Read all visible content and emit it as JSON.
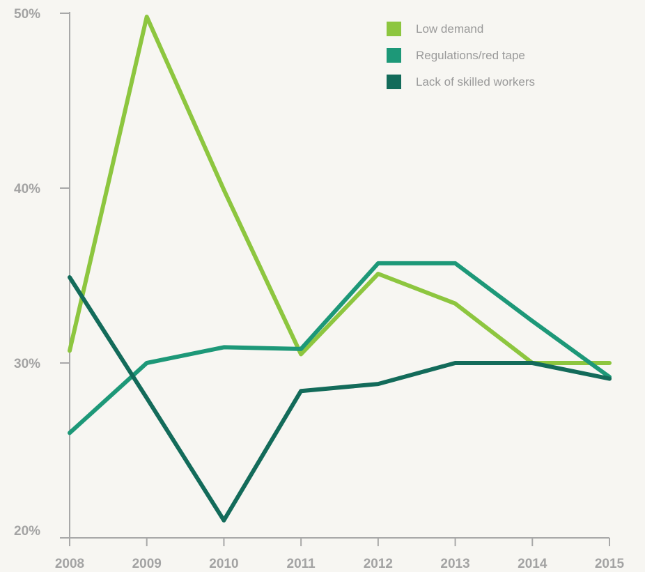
{
  "chart_data": {
    "type": "line",
    "x": [
      "2008",
      "2009",
      "2010",
      "2011",
      "2012",
      "2013",
      "2014",
      "2015"
    ],
    "ylim": [
      20,
      50
    ],
    "yticks": [
      20,
      30,
      40,
      50
    ],
    "ytick_labels": [
      "20%",
      "30%",
      "40%",
      "50%"
    ],
    "grid": false,
    "legend_position": "top-right",
    "series": [
      {
        "name": "Low demand",
        "color": "#8dc63f",
        "values": [
          30.7,
          49.8,
          39.9,
          30.5,
          35.1,
          33.4,
          30.0,
          30.0
        ]
      },
      {
        "name": "Regulations/red tape",
        "color": "#1d9878",
        "values": [
          26.0,
          30.0,
          30.9,
          30.8,
          35.7,
          35.7,
          32.4,
          29.2
        ]
      },
      {
        "name": "Lack of skilled workers",
        "color": "#136b5a",
        "values": [
          34.9,
          28.0,
          21.0,
          28.4,
          28.8,
          30.0,
          30.0,
          29.1
        ]
      }
    ]
  }
}
